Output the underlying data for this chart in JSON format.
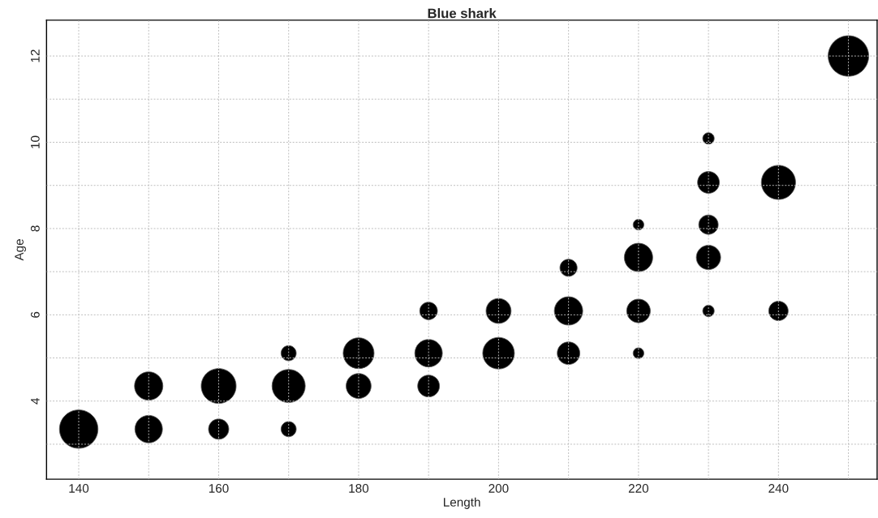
{
  "chart_data": {
    "type": "bubble",
    "title": "Blue shark",
    "xlabel": "Length",
    "ylabel": "Age",
    "color": "#000000",
    "x": [
      140,
      150,
      150,
      160,
      160,
      170,
      170,
      170,
      180,
      180,
      190,
      190,
      190,
      200,
      200,
      210,
      210,
      210,
      220,
      220,
      220,
      220,
      230,
      230,
      230,
      230,
      230,
      240,
      240,
      250
    ],
    "values": [
      3.35,
      3.35,
      4.35,
      3.35,
      4.35,
      3.35,
      4.35,
      5.11,
      4.35,
      5.11,
      4.35,
      5.11,
      6.09,
      5.11,
      6.09,
      5.11,
      6.09,
      7.09,
      5.11,
      6.09,
      7.33,
      8.09,
      6.09,
      7.33,
      8.09,
      9.07,
      10.09,
      6.09,
      9.07,
      12.0
    ],
    "sizes": [
      0.9,
      0.46,
      0.49,
      0.25,
      0.74,
      0.14,
      0.67,
      0.14,
      0.38,
      0.58,
      0.29,
      0.46,
      0.19,
      0.61,
      0.38,
      0.31,
      0.49,
      0.18,
      0.07,
      0.34,
      0.49,
      0.07,
      0.08,
      0.36,
      0.23,
      0.29,
      0.08,
      0.23,
      0.71,
      1.0
    ],
    "xlim": [
      135.4,
      254.1
    ],
    "ylim": [
      2.19,
      12.83
    ],
    "xticks": [
      140,
      {
        "value": 150,
        "label": null
      },
      160,
      {
        "value": 170,
        "label": null
      },
      180,
      {
        "value": 190,
        "label": null
      },
      200,
      {
        "value": 210,
        "label": null
      },
      220,
      {
        "value": 230,
        "label": null
      },
      240,
      {
        "value": 250,
        "label": null
      }
    ],
    "yticks": [
      {
        "value": 3,
        "label": null
      },
      4,
      {
        "value": 5,
        "label": null
      },
      6,
      {
        "value": 7,
        "label": null
      },
      8,
      {
        "value": 9,
        "label": null
      },
      10,
      {
        "value": 11,
        "label": null
      },
      12
    ],
    "grid": true
  }
}
